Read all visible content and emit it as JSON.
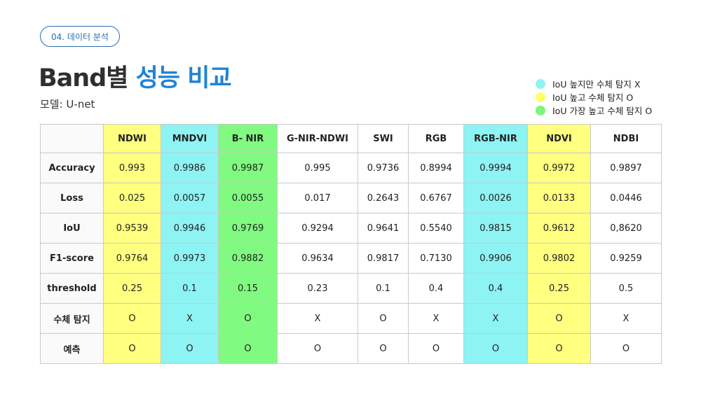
{
  "header": {
    "section_tag": "04. 데이터 분석",
    "title_part1": "Band별 ",
    "title_part2": "성능 비교",
    "subtitle": "모델: U-net"
  },
  "legend": [
    {
      "color": "#8ef3f3",
      "label": "IoU 높지만 수체 탐지 X"
    },
    {
      "color": "#ffff66",
      "label": "IoU  높고 수체 탐지 O"
    },
    {
      "color": "#7ef57e",
      "label": "IoU 가장 높고 수체 탐지 O"
    }
  ],
  "table": {
    "columns": [
      {
        "label": "NDWI",
        "highlight": "yellow"
      },
      {
        "label": "MNDVI",
        "highlight": "cyan"
      },
      {
        "label": "B- NIR",
        "highlight": "green"
      },
      {
        "label": "G-NIR-NDWI",
        "highlight": ""
      },
      {
        "label": "SWI",
        "highlight": ""
      },
      {
        "label": "RGB",
        "highlight": ""
      },
      {
        "label": "RGB-NIR",
        "highlight": "cyan"
      },
      {
        "label": "NDVI",
        "highlight": "yellow"
      },
      {
        "label": "NDBI",
        "highlight": ""
      }
    ],
    "rows": [
      {
        "label": "Accuracy",
        "values": [
          "0.993",
          "0.9986",
          "0.9987",
          "0.995",
          "0.9736",
          "0.8994",
          "0.9994",
          "0.9972",
          "0.9897"
        ]
      },
      {
        "label": "Loss",
        "values": [
          "0.025",
          "0.0057",
          "0.0055",
          "0.017",
          "0.2643",
          "0.6767",
          "0.0026",
          "0.0133",
          "0.0446"
        ]
      },
      {
        "label": "IoU",
        "values": [
          "0.9539",
          "0.9946",
          "0.9769",
          "0.9294",
          "0.9641",
          "0.5540",
          "0.9815",
          "0.9612",
          "0,8620"
        ]
      },
      {
        "label": "F1-score",
        "values": [
          "0.9764",
          "0.9973",
          "0.9882",
          "0.9634",
          "0.9817",
          "0.7130",
          "0.9906",
          "0.9802",
          "0.9259"
        ]
      },
      {
        "label": "threshold",
        "values": [
          "0.25",
          "0.1",
          "0.15",
          "0.23",
          "0.1",
          "0.4",
          "0.4",
          "0.25",
          "0.5"
        ]
      },
      {
        "label": "수체 탐지",
        "values": [
          "O",
          "X",
          "O",
          "X",
          "O",
          "X",
          "X",
          "O",
          "X"
        ]
      },
      {
        "label": "예측",
        "values": [
          "O",
          "O",
          "O",
          "O",
          "O",
          "O",
          "O",
          "O",
          "O"
        ]
      }
    ]
  }
}
